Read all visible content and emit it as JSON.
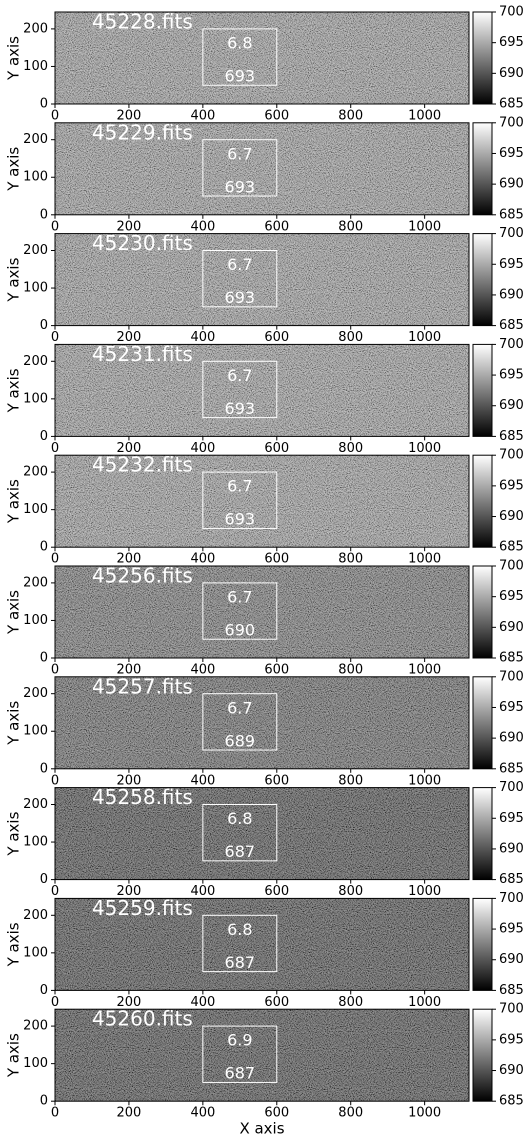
{
  "chart_data": [
    {
      "type": "image",
      "title": "45228.fits",
      "box_values": [
        6.8,
        693
      ],
      "box": {
        "x": [
          400,
          600
        ],
        "y": [
          50,
          200
        ]
      },
      "xlim": [
        0,
        1120
      ],
      "ylim": [
        0,
        245
      ],
      "xticks": [
        0,
        200,
        400,
        600,
        800,
        1000
      ],
      "yticks": [
        0,
        100,
        200
      ],
      "ylabel": "Y axis",
      "cmap": "gray",
      "clim": [
        685,
        700
      ],
      "cticks": [
        685,
        690,
        695,
        700
      ]
    },
    {
      "type": "image",
      "title": "45229.fits",
      "box_values": [
        6.7,
        693
      ],
      "box": {
        "x": [
          400,
          600
        ],
        "y": [
          50,
          200
        ]
      },
      "xlim": [
        0,
        1120
      ],
      "ylim": [
        0,
        245
      ],
      "xticks": [
        0,
        200,
        400,
        600,
        800,
        1000
      ],
      "yticks": [
        0,
        100,
        200
      ],
      "ylabel": "Y axis",
      "cmap": "gray",
      "clim": [
        685,
        700
      ],
      "cticks": [
        685,
        690,
        695,
        700
      ]
    },
    {
      "type": "image",
      "title": "45230.fits",
      "box_values": [
        6.7,
        693
      ],
      "box": {
        "x": [
          400,
          600
        ],
        "y": [
          50,
          200
        ]
      },
      "xlim": [
        0,
        1120
      ],
      "ylim": [
        0,
        245
      ],
      "xticks": [
        0,
        200,
        400,
        600,
        800,
        1000
      ],
      "yticks": [
        0,
        100,
        200
      ],
      "ylabel": "Y axis",
      "cmap": "gray",
      "clim": [
        685,
        700
      ],
      "cticks": [
        685,
        690,
        695,
        700
      ]
    },
    {
      "type": "image",
      "title": "45231.fits",
      "box_values": [
        6.7,
        693
      ],
      "box": {
        "x": [
          400,
          600
        ],
        "y": [
          50,
          200
        ]
      },
      "xlim": [
        0,
        1120
      ],
      "ylim": [
        0,
        245
      ],
      "xticks": [
        0,
        200,
        400,
        600,
        800,
        1000
      ],
      "yticks": [
        0,
        100,
        200
      ],
      "ylabel": "Y axis",
      "cmap": "gray",
      "clim": [
        685,
        700
      ],
      "cticks": [
        685,
        690,
        695,
        700
      ]
    },
    {
      "type": "image",
      "title": "45232.fits",
      "box_values": [
        6.7,
        693
      ],
      "box": {
        "x": [
          400,
          600
        ],
        "y": [
          50,
          200
        ]
      },
      "xlim": [
        0,
        1120
      ],
      "ylim": [
        0,
        245
      ],
      "xticks": [
        0,
        200,
        400,
        600,
        800,
        1000
      ],
      "yticks": [
        0,
        100,
        200
      ],
      "ylabel": "Y axis",
      "cmap": "gray",
      "clim": [
        685,
        700
      ],
      "cticks": [
        685,
        690,
        695,
        700
      ]
    },
    {
      "type": "image",
      "title": "45256.fits",
      "box_values": [
        6.7,
        690
      ],
      "box": {
        "x": [
          400,
          600
        ],
        "y": [
          50,
          200
        ]
      },
      "xlim": [
        0,
        1120
      ],
      "ylim": [
        0,
        245
      ],
      "xticks": [
        0,
        200,
        400,
        600,
        800,
        1000
      ],
      "yticks": [
        0,
        100,
        200
      ],
      "ylabel": "Y axis",
      "cmap": "gray",
      "clim": [
        685,
        700
      ],
      "cticks": [
        685,
        690,
        695,
        700
      ]
    },
    {
      "type": "image",
      "title": "45257.fits",
      "box_values": [
        6.7,
        689
      ],
      "box": {
        "x": [
          400,
          600
        ],
        "y": [
          50,
          200
        ]
      },
      "xlim": [
        0,
        1120
      ],
      "ylim": [
        0,
        245
      ],
      "xticks": [
        0,
        200,
        400,
        600,
        800,
        1000
      ],
      "yticks": [
        0,
        100,
        200
      ],
      "ylabel": "Y axis",
      "cmap": "gray",
      "clim": [
        685,
        700
      ],
      "cticks": [
        685,
        690,
        695,
        700
      ]
    },
    {
      "type": "image",
      "title": "45258.fits",
      "box_values": [
        6.8,
        687
      ],
      "box": {
        "x": [
          400,
          600
        ],
        "y": [
          50,
          200
        ]
      },
      "xlim": [
        0,
        1120
      ],
      "ylim": [
        0,
        245
      ],
      "xticks": [
        0,
        200,
        400,
        600,
        800,
        1000
      ],
      "yticks": [
        0,
        100,
        200
      ],
      "ylabel": "Y axis",
      "cmap": "gray",
      "clim": [
        685,
        700
      ],
      "cticks": [
        685,
        690,
        695,
        700
      ]
    },
    {
      "type": "image",
      "title": "45259.fits",
      "box_values": [
        6.8,
        687
      ],
      "box": {
        "x": [
          400,
          600
        ],
        "y": [
          50,
          200
        ]
      },
      "xlim": [
        0,
        1120
      ],
      "ylim": [
        0,
        245
      ],
      "xticks": [
        0,
        200,
        400,
        600,
        800,
        1000
      ],
      "yticks": [
        0,
        100,
        200
      ],
      "ylabel": "Y axis",
      "cmap": "gray",
      "clim": [
        685,
        700
      ],
      "cticks": [
        685,
        690,
        695,
        700
      ]
    },
    {
      "type": "image",
      "title": "45260.fits",
      "box_values": [
        6.9,
        687
      ],
      "box": {
        "x": [
          400,
          600
        ],
        "y": [
          50,
          200
        ]
      },
      "xlim": [
        0,
        1120
      ],
      "ylim": [
        0,
        245
      ],
      "xticks": [
        0,
        200,
        400,
        600,
        800,
        1000
      ],
      "yticks": [
        0,
        100,
        200
      ],
      "ylabel": "Y axis",
      "xlabel": "X axis",
      "cmap": "gray",
      "clim": [
        685,
        700
      ],
      "cticks": [
        685,
        690,
        695,
        700
      ]
    }
  ]
}
